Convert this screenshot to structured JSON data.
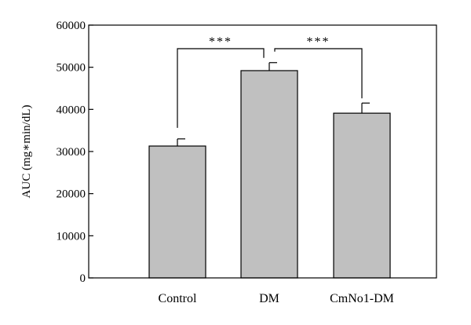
{
  "chart_data": {
    "type": "bar",
    "categories": [
      "Control",
      "DM",
      "CmNo1-DM"
    ],
    "values": [
      31300,
      49200,
      39100
    ],
    "errors": [
      1700,
      1900,
      2400
    ],
    "title": "",
    "xlabel": "",
    "ylabel": "AUC (mg∗min/dL)",
    "ylim": [
      0,
      60000
    ],
    "yticks": [
      0,
      10000,
      20000,
      30000,
      40000,
      50000,
      60000
    ],
    "grid": false,
    "legend": "none",
    "bar_color": "#c0c0c0",
    "significance": [
      {
        "from": "Control",
        "to": "DM",
        "label": "***"
      },
      {
        "from": "DM",
        "to": "CmNo1-DM",
        "label": "***"
      }
    ]
  }
}
